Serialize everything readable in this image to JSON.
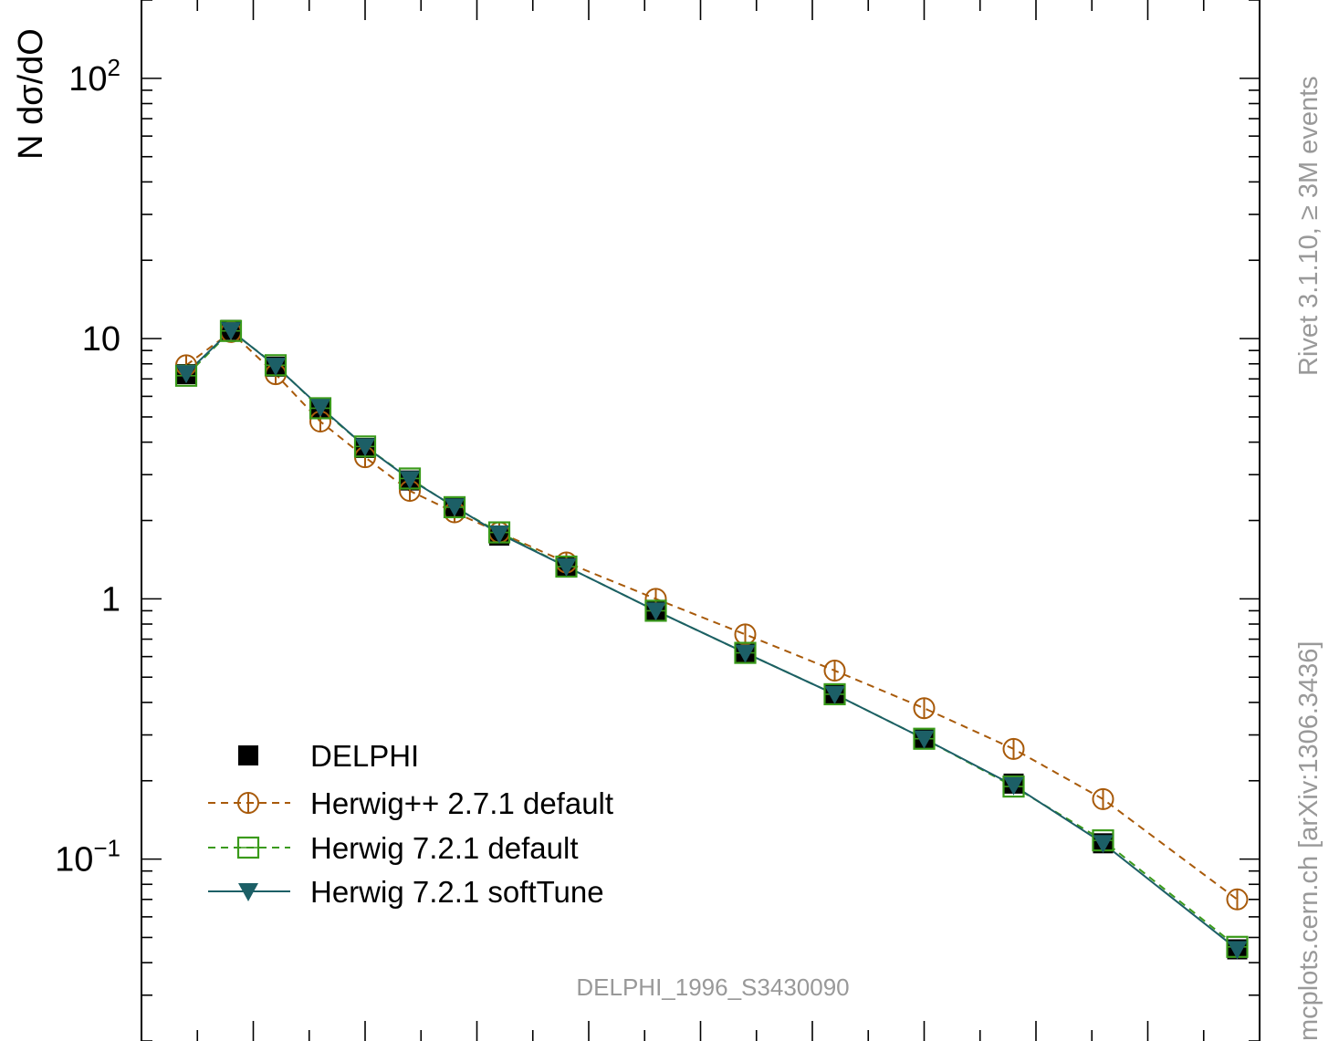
{
  "chart_data": {
    "type": "line",
    "title": "",
    "xlabel": "",
    "ylabel": "N dσ/dO",
    "yscale": "log",
    "ylim": [
      0.02,
      200
    ],
    "xlim": [
      0,
      1
    ],
    "grid": false,
    "legend_position": "bottom-left",
    "y_tick_labels": [
      {
        "value": 100,
        "base": "10",
        "exp": "2"
      },
      {
        "value": 10,
        "base": "10",
        "exp": ""
      },
      {
        "value": 1,
        "base": "1",
        "exp": ""
      },
      {
        "value": 0.1,
        "base": "10",
        "exp": "−1"
      }
    ],
    "series": [
      {
        "name": "DELPHI",
        "color": "#000000",
        "marker": "filled-square",
        "line": "none",
        "x": [
          0.04,
          0.08,
          0.12,
          0.16,
          0.2,
          0.24,
          0.28,
          0.32,
          0.38,
          0.46,
          0.54,
          0.62,
          0.7,
          0.78,
          0.86,
          0.98
        ],
        "y": [
          7.3,
          10.8,
          7.8,
          5.4,
          3.8,
          2.85,
          2.25,
          1.75,
          1.32,
          0.9,
          0.62,
          0.43,
          0.29,
          0.195,
          0.115,
          0.045
        ]
      },
      {
        "name": "Herwig++ 2.7.1 default",
        "color": "#a85a0a",
        "marker": "open-circle",
        "line": "dashed",
        "x": [
          0.04,
          0.08,
          0.12,
          0.16,
          0.2,
          0.24,
          0.28,
          0.32,
          0.38,
          0.46,
          0.54,
          0.62,
          0.7,
          0.78,
          0.86,
          0.98
        ],
        "y": [
          7.9,
          10.6,
          7.3,
          4.8,
          3.5,
          2.6,
          2.15,
          1.8,
          1.38,
          1.0,
          0.73,
          0.53,
          0.38,
          0.265,
          0.17,
          0.07
        ]
      },
      {
        "name": "Herwig 7.2.1 default",
        "color": "#3a9a1a",
        "marker": "open-square",
        "line": "dashed",
        "x": [
          0.04,
          0.08,
          0.12,
          0.16,
          0.2,
          0.24,
          0.28,
          0.32,
          0.38,
          0.46,
          0.54,
          0.62,
          0.7,
          0.78,
          0.86,
          0.98
        ],
        "y": [
          7.2,
          10.7,
          7.9,
          5.4,
          3.85,
          2.9,
          2.25,
          1.8,
          1.33,
          0.9,
          0.62,
          0.43,
          0.29,
          0.19,
          0.118,
          0.046
        ]
      },
      {
        "name": "Herwig 7.2.1 softTune",
        "color": "#1c5f66",
        "marker": "filled-triangle-down",
        "line": "solid",
        "x": [
          0.04,
          0.08,
          0.12,
          0.16,
          0.2,
          0.24,
          0.28,
          0.32,
          0.38,
          0.46,
          0.54,
          0.62,
          0.7,
          0.78,
          0.86,
          0.98
        ],
        "y": [
          7.35,
          10.75,
          7.85,
          5.45,
          3.85,
          2.88,
          2.26,
          1.78,
          1.33,
          0.9,
          0.62,
          0.43,
          0.29,
          0.192,
          0.115,
          0.045
        ]
      }
    ]
  },
  "annotations": {
    "analysis_id": "DELPHI_1996_S3430090",
    "side_text_upper": "Rivet 3.1.10, ≥ 3M events",
    "side_text_lower": "mcplots.cern.ch [arXiv:1306.3436]"
  }
}
